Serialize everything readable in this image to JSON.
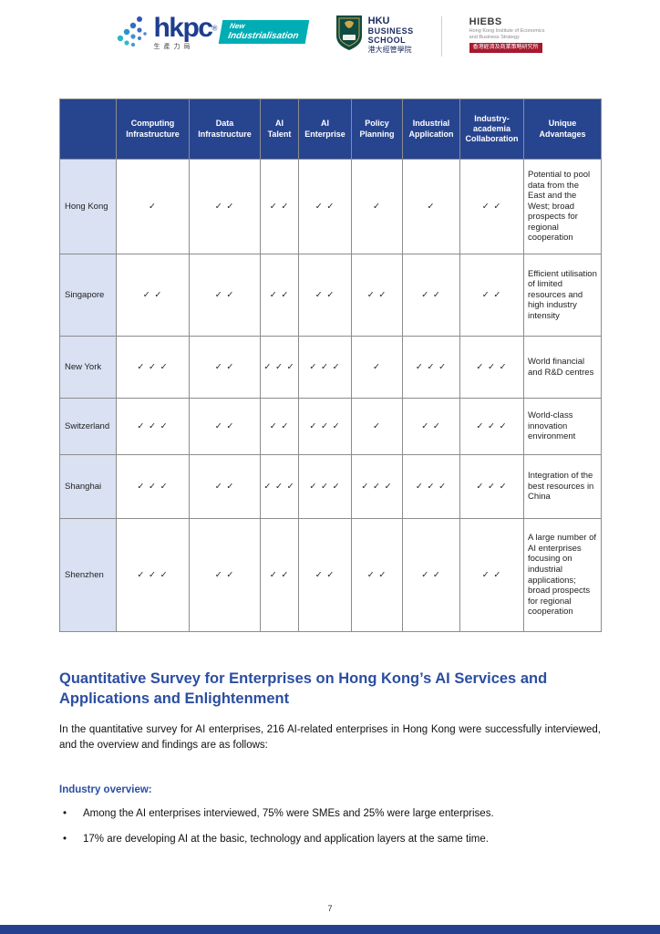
{
  "header": {
    "hkpc": {
      "name": "hkpc",
      "reg": "®",
      "chinese": "生產力局",
      "tagline_line1": "New",
      "tagline_line2": "Industrialisation"
    },
    "hku": {
      "line1": "HKU",
      "line2": "BUSINESS",
      "line3": "SCHOOL",
      "chinese": "港大經管學院"
    },
    "hiebs": {
      "name": "HIEBS",
      "desc_line1": "Hong Kong Institute of Economics",
      "desc_line2": "and Business Strategy",
      "chinese": "香港經濟及商業策略研究所"
    }
  },
  "table": {
    "columns": [
      "",
      "Computing Infrastructure",
      "Data Infrastructure",
      "AI Talent",
      "AI Enterprise",
      "Policy Planning",
      "Industrial Application",
      "Industry-academia Collaboration",
      "Unique Advantages"
    ],
    "rows": [
      {
        "region": "Hong Kong",
        "ticks": [
          "✓",
          "✓ ✓",
          "✓ ✓",
          "✓ ✓",
          "✓",
          "✓",
          "✓ ✓"
        ],
        "advantage": "Potential to pool data from the East and the West; broad prospects for regional cooperation"
      },
      {
        "region": "Singapore",
        "ticks": [
          "✓ ✓",
          "✓ ✓",
          "✓ ✓",
          "✓ ✓",
          "✓ ✓",
          "✓ ✓",
          "✓ ✓"
        ],
        "advantage": "Efficient utilisation of limited resources and high industry intensity"
      },
      {
        "region": "New York",
        "ticks": [
          "✓ ✓ ✓",
          "✓ ✓",
          "✓ ✓ ✓",
          "✓ ✓ ✓",
          "✓",
          "✓ ✓ ✓",
          "✓ ✓ ✓"
        ],
        "advantage": "World financial and R&D centres"
      },
      {
        "region": "Switzerland",
        "ticks": [
          "✓ ✓ ✓",
          "✓ ✓",
          "✓ ✓",
          "✓ ✓ ✓",
          "✓",
          "✓ ✓",
          "✓ ✓ ✓"
        ],
        "advantage": "World-class innovation environment"
      },
      {
        "region": "Shanghai",
        "ticks": [
          "✓ ✓ ✓",
          "✓ ✓",
          "✓ ✓ ✓",
          "✓ ✓ ✓",
          "✓ ✓ ✓",
          "✓ ✓ ✓",
          "✓ ✓ ✓"
        ],
        "advantage": "Integration of the best resources in China"
      },
      {
        "region": "Shenzhen",
        "ticks": [
          "✓ ✓ ✓",
          "✓ ✓",
          "✓ ✓",
          "✓ ✓",
          "✓ ✓",
          "✓ ✓",
          "✓ ✓"
        ],
        "advantage": "A large number of AI enterprises focusing on industrial applications; broad prospects for regional cooperation"
      }
    ]
  },
  "section": {
    "title": "Quantitative Survey for Enterprises on Hong Kong’s AI Services and Applications and Enlightenment",
    "intro": "In the quantitative survey for AI enterprises, 216 AI-related enterprises in Hong Kong were successfully interviewed, and the overview and findings are as follows:",
    "subheading": "Industry overview:",
    "bullets": [
      "Among the AI enterprises interviewed, 75% were SMEs and 25% were large enterprises.",
      "17% are developing AI at the basic, technology and application layers at the same time."
    ]
  },
  "footer": {
    "page_number": "7"
  },
  "colors": {
    "table_header_blue": "#27448F",
    "region_column_bg": "#D9E1F2",
    "heading_blue": "#2B4EA2",
    "hkpc_teal": "#00ADB5",
    "hiebs_red": "#A6192E",
    "footer_bar_blue": "#24408E"
  }
}
